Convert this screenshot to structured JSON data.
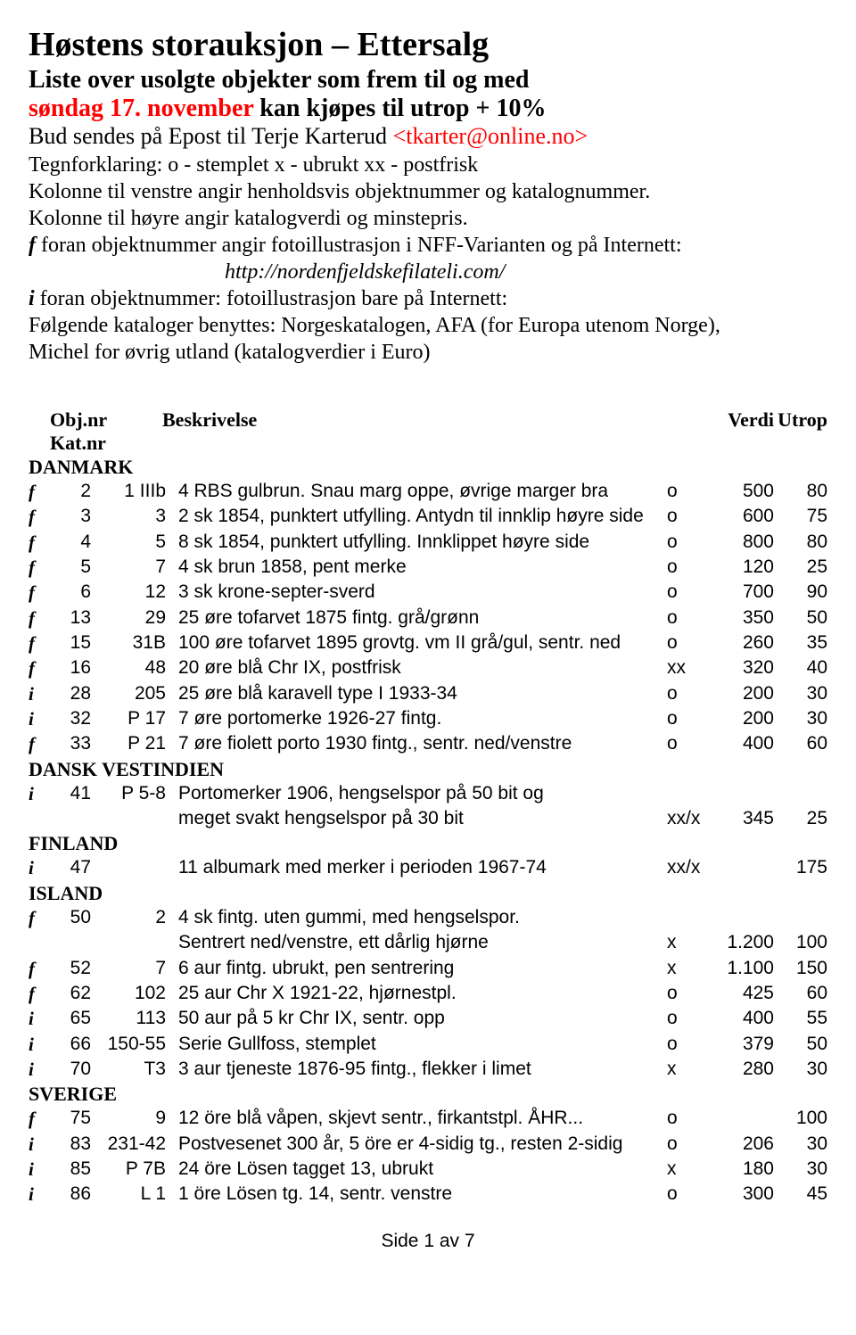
{
  "header": {
    "title": "Høstens storauksjon – Ettersalg",
    "subtitle1": "Liste over usolgte objekter som frem til og med",
    "subtitle2a": "søndag 17. november",
    "subtitle2b": " kan kjøpes til utrop + 10%",
    "epost_prefix": "Bud sendes på Epost til Terje Karterud ",
    "epost_addr": "<tkarter@online.no>"
  },
  "legend": {
    "l1a": "Tegnforklaring:     o - stemplet     x - ubrukt     xx - postfrisk",
    "l2": "Kolonne til venstre angir henholdsvis objektnummer og katalognummer.",
    "l3": "Kolonne til høyre angir katalogverdi og minstepris.",
    "l4a": "f ",
    "l4b": "foran objektnummer angir fotoillustrasjon i NFF-Varianten og på Internett:",
    "l5": "http://nordenfjeldskefilateli.com/",
    "l6a": "i ",
    "l6b": "foran objektnummer: fotoillustrasjon bare på Internett:",
    "l7": "Følgende kataloger benyttes: Norgeskatalogen, AFA (for Europa utenom Norge),",
    "l8": "Michel for øvrig utland (katalogverdier i Euro)"
  },
  "columns": {
    "objkat": "Obj.nr Kat.nr",
    "besk": "Beskrivelse",
    "verdi": "Verdi",
    "utrop": "Utrop"
  },
  "sections": {
    "danmark": "DANMARK",
    "dvi": "DANSK VESTINDIEN",
    "finland": "FINLAND",
    "island": "ISLAND",
    "sverige": "SVERIGE"
  },
  "rows": {
    "danmark": [
      {
        "m": "f",
        "obj": "2",
        "kat": "1 IIIb",
        "desc": "4 RBS gulbrun. Snau marg oppe, øvrige marger bra",
        "cond": "o",
        "verdi": "500",
        "utrop": "80"
      },
      {
        "m": "f",
        "obj": "3",
        "kat": "3",
        "desc": "2 sk 1854, punktert utfylling. Antydn til innklip høyre side",
        "cond": "o",
        "verdi": "600",
        "utrop": "75"
      },
      {
        "m": "f",
        "obj": "4",
        "kat": "5",
        "desc": "8 sk 1854, punktert utfylling. Innklippet høyre side",
        "cond": "o",
        "verdi": "800",
        "utrop": "80"
      },
      {
        "m": "f",
        "obj": "5",
        "kat": "7",
        "desc": "4 sk brun 1858, pent merke",
        "cond": "o",
        "verdi": "120",
        "utrop": "25"
      },
      {
        "m": "f",
        "obj": "6",
        "kat": "12",
        "desc": "3 sk krone-septer-sverd",
        "cond": "o",
        "verdi": "700",
        "utrop": "90"
      },
      {
        "m": "f",
        "obj": "13",
        "kat": "29",
        "desc": "25 øre tofarvet 1875 fintg. grå/grønn",
        "cond": "o",
        "verdi": "350",
        "utrop": "50"
      },
      {
        "m": "f",
        "obj": "15",
        "kat": "31B",
        "desc": "100 øre tofarvet 1895 grovtg. vm II grå/gul, sentr. ned",
        "cond": "o",
        "verdi": "260",
        "utrop": "35"
      },
      {
        "m": "f",
        "obj": "16",
        "kat": "48",
        "desc": "20 øre blå Chr IX, postfrisk",
        "cond": "xx",
        "verdi": "320",
        "utrop": "40"
      },
      {
        "m": "i",
        "obj": "28",
        "kat": "205",
        "desc": "25 øre blå karavell type I 1933-34",
        "cond": "o",
        "verdi": "200",
        "utrop": "30"
      },
      {
        "m": "i",
        "obj": "32",
        "kat": "P 17",
        "desc": "7 øre portomerke 1926-27 fintg.",
        "cond": "o",
        "verdi": "200",
        "utrop": "30"
      },
      {
        "m": "f",
        "obj": "33",
        "kat": "P 21",
        "desc": "7 øre fiolett porto 1930 fintg., sentr. ned/venstre",
        "cond": "o",
        "verdi": "400",
        "utrop": "60"
      }
    ],
    "dvi": [
      {
        "m": "i",
        "obj": "41",
        "kat": "P 5-8",
        "desc": "Portomerker 1906, hengselspor på 50 bit og",
        "cond": "",
        "verdi": "",
        "utrop": "",
        "cont": "meget svakt hengselspor på 30 bit",
        "cond2": "xx/x",
        "verdi2": "345",
        "utrop2": "25"
      }
    ],
    "finland": [
      {
        "m": "i",
        "obj": "47",
        "kat": "",
        "desc": "11 albumark med merker i perioden 1967-74",
        "cond": "xx/x",
        "verdi": "",
        "utrop": "175"
      }
    ],
    "island": [
      {
        "m": "f",
        "obj": "50",
        "kat": "2",
        "desc": "4 sk fintg. uten gummi, med hengselspor.",
        "cond": "",
        "verdi": "",
        "utrop": "",
        "cont": "Sentrert ned/venstre, ett dårlig hjørne",
        "cond2": "x",
        "verdi2": "1.200",
        "utrop2": "100"
      },
      {
        "m": "f",
        "obj": "52",
        "kat": "7",
        "desc": "6 aur fintg. ubrukt, pen sentrering",
        "cond": "x",
        "verdi": "1.100",
        "utrop": "150"
      },
      {
        "m": "f",
        "obj": "62",
        "kat": "102",
        "desc": "25 aur Chr X 1921-22, hjørnestpl.",
        "cond": "o",
        "verdi": "425",
        "utrop": "60"
      },
      {
        "m": "i",
        "obj": "65",
        "kat": "113",
        "desc": "50 aur på 5 kr Chr IX, sentr. opp",
        "cond": "o",
        "verdi": "400",
        "utrop": "55"
      },
      {
        "m": "i",
        "obj": "66",
        "kat": "150-55",
        "desc": "Serie Gullfoss, stemplet",
        "cond": "o",
        "verdi": "379",
        "utrop": "50"
      },
      {
        "m": "i",
        "obj": "70",
        "kat": "T3",
        "desc": "3 aur tjeneste 1876-95 fintg., flekker i limet",
        "cond": "x",
        "verdi": "280",
        "utrop": "30"
      }
    ],
    "sverige": [
      {
        "m": "f",
        "obj": "75",
        "kat": "9",
        "desc": "12 öre blå våpen, skjevt sentr., firkantstpl. ÅHR...",
        "cond": "o",
        "verdi": "",
        "utrop": "100"
      },
      {
        "m": "i",
        "obj": "83",
        "kat": "231-42",
        "desc": "Postvesenet 300 år, 5 öre er 4-sidig tg., resten 2-sidig",
        "cond": "o",
        "verdi": "206",
        "utrop": "30"
      },
      {
        "m": "i",
        "obj": "85",
        "kat": "P 7B",
        "desc": "24 öre Lösen tagget 13, ubrukt",
        "cond": "x",
        "verdi": "180",
        "utrop": "30"
      },
      {
        "m": "i",
        "obj": "86",
        "kat": "L 1",
        "desc": "1 öre Lösen tg. 14, sentr. venstre",
        "cond": "o",
        "verdi": "300",
        "utrop": "45"
      }
    ]
  },
  "footer": "Side 1 av 7"
}
